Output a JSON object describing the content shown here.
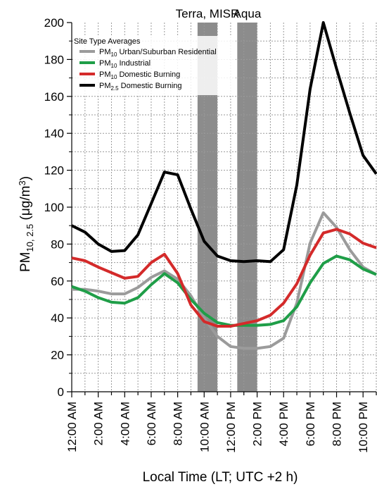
{
  "chart_data": {
    "type": "line",
    "ylabel": "PM10, 2.5 (μg/m3)",
    "xlabel": "Local Time (LT; UTC +2 h)",
    "ylim": [
      0,
      200
    ],
    "xlim": [
      0,
      23
    ],
    "yticks": [
      0,
      20,
      40,
      60,
      80,
      100,
      120,
      140,
      160,
      180,
      200
    ],
    "xticks": [
      {
        "h": 0,
        "label": "12:00 AM"
      },
      {
        "h": 2,
        "label": "2:00 AM"
      },
      {
        "h": 4,
        "label": "4:00 AM"
      },
      {
        "h": 6,
        "label": "6:00 AM"
      },
      {
        "h": 8,
        "label": "8:00 AM"
      },
      {
        "h": 10,
        "label": "10:00 AM"
      },
      {
        "h": 12,
        "label": "12:00 PM"
      },
      {
        "h": 14,
        "label": "2:00 PM"
      },
      {
        "h": 16,
        "label": "4:00 PM"
      },
      {
        "h": 18,
        "label": "6:00 PM"
      },
      {
        "h": 20,
        "label": "8:00 PM"
      },
      {
        "h": 22,
        "label": "10:00 PM"
      }
    ],
    "grid": true,
    "x": [
      0,
      1,
      2,
      3,
      4,
      5,
      6,
      7,
      8,
      9,
      10,
      11,
      12,
      13,
      14,
      15,
      16,
      17,
      18,
      19,
      20,
      21,
      22,
      23
    ],
    "overpass_bands": [
      {
        "label": "Terra, MISR",
        "from": 9.5,
        "to": 11.0
      },
      {
        "label": "Aqua",
        "from": 12.5,
        "to": 14.0
      }
    ],
    "legend": {
      "title": "Site Type Averages",
      "placement": "top-left"
    },
    "series": [
      {
        "name": "PM10 Urban/Suburban Residential",
        "pm": "PM",
        "sub": "10",
        "rest": " Urban/Suburban Residential",
        "color": "#9b9b9b",
        "values": [
          55.5,
          55.5,
          54.5,
          53,
          53,
          56.5,
          62,
          65.5,
          61,
          52,
          40,
          30,
          24.5,
          23.5,
          23.5,
          24.5,
          29,
          48,
          80.5,
          97,
          89,
          77,
          67.5,
          63.5
        ]
      },
      {
        "name": "PM10 Industrial",
        "pm": "PM",
        "sub": "10",
        "rest": " Industrial",
        "color": "#1f9e48",
        "values": [
          57,
          54.5,
          51,
          48.5,
          48,
          51,
          58,
          64,
          59,
          50,
          42.5,
          37.5,
          36,
          36,
          36,
          36.5,
          38.5,
          46,
          59,
          69.5,
          73.5,
          71.5,
          66.5,
          63.5
        ]
      },
      {
        "name": "PM10 Domestic Burning",
        "pm": "PM",
        "sub": "10",
        "rest": " Domestic Burning",
        "color": "#d42a2a",
        "values": [
          72.5,
          71,
          67.5,
          64.5,
          61.5,
          62.5,
          70,
          74.5,
          64,
          47,
          38,
          35.5,
          35.5,
          37,
          38.5,
          41.5,
          48,
          58.5,
          74,
          86,
          88,
          85.5,
          80.5,
          78
        ]
      },
      {
        "name": "PM2.5 Domestic Burning",
        "pm": "PM",
        "sub": "2.5",
        "rest": " Domestic Burning",
        "color": "#000000",
        "values": [
          90,
          86.5,
          80,
          76,
          76.5,
          85,
          102,
          119,
          117.5,
          99,
          81.5,
          73.5,
          71,
          70.5,
          71,
          70.5,
          77,
          112,
          164,
          200,
          175,
          151,
          128,
          118
        ]
      }
    ]
  }
}
